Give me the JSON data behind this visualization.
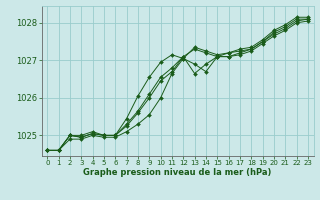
{
  "title": "Graphe pression niveau de la mer (hPa)",
  "bg_color": "#cce8e8",
  "grid_color": "#99cccc",
  "line_color": "#1a5c1a",
  "text_color": "#1a5c1a",
  "ylim": [
    1024.45,
    1028.45
  ],
  "xlim": [
    -0.5,
    23.5
  ],
  "yticks": [
    1025,
    1026,
    1027,
    1028
  ],
  "xticks": [
    0,
    1,
    2,
    3,
    4,
    5,
    6,
    7,
    8,
    9,
    10,
    11,
    12,
    13,
    14,
    15,
    16,
    17,
    18,
    19,
    20,
    21,
    22,
    23
  ],
  "series": [
    [
      1024.6,
      1024.6,
      1024.9,
      1024.9,
      1025.0,
      1024.95,
      1024.95,
      1025.1,
      1025.3,
      1025.55,
      1026.0,
      1026.65,
      1027.05,
      1026.9,
      1026.7,
      1027.1,
      1027.1,
      1027.15,
      1027.25,
      1027.45,
      1027.65,
      1027.8,
      1028.0,
      1028.05
    ],
    [
      1024.6,
      1024.6,
      1025.0,
      1024.95,
      1025.05,
      1025.0,
      1025.0,
      1025.25,
      1025.6,
      1026.0,
      1026.45,
      1026.7,
      1027.1,
      1026.65,
      1026.9,
      1027.1,
      1027.1,
      1027.2,
      1027.3,
      1027.5,
      1027.7,
      1027.85,
      1028.05,
      1028.1
    ],
    [
      1024.6,
      1024.6,
      1025.0,
      1024.95,
      1025.05,
      1025.0,
      1025.0,
      1025.3,
      1025.65,
      1026.1,
      1026.55,
      1026.8,
      1027.1,
      1027.3,
      1027.2,
      1027.1,
      1027.2,
      1027.25,
      1027.3,
      1027.5,
      1027.75,
      1027.9,
      1028.1,
      1028.1
    ],
    [
      1024.6,
      1024.6,
      1025.0,
      1025.0,
      1025.1,
      1025.0,
      1025.0,
      1025.45,
      1026.05,
      1026.55,
      1026.95,
      1027.15,
      1027.05,
      1027.35,
      1027.25,
      1027.15,
      1027.2,
      1027.3,
      1027.35,
      1027.55,
      1027.8,
      1027.95,
      1028.15,
      1028.15
    ]
  ]
}
